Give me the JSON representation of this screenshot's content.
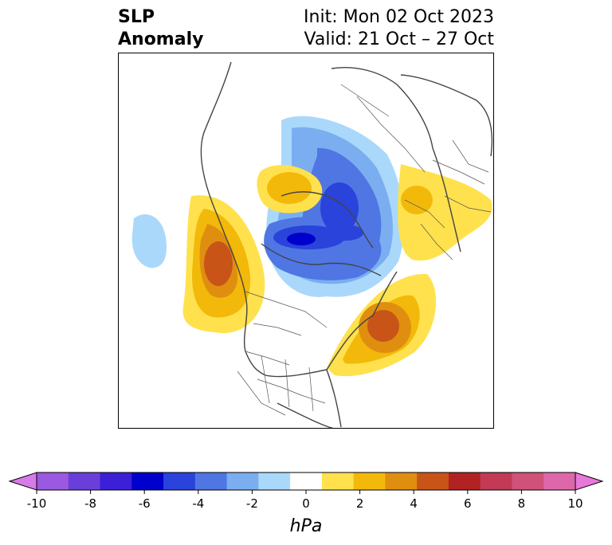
{
  "header": {
    "variable_line1": "SLP",
    "variable_line2": "Anomaly",
    "init": "Init: Mon 02 Oct 2023",
    "valid": "Valid: 21 Oct – 27 Oct"
  },
  "map": {
    "projection": "north-polar-stereographic",
    "features": [
      {
        "kind": "positive-anomaly",
        "region": "Gulf of Alaska / western Canada",
        "peak_hPa": 6
      },
      {
        "kind": "positive-anomaly",
        "region": "eastern Canada / Newfoundland",
        "peak_hPa": 6
      },
      {
        "kind": "positive-anomaly",
        "region": "Scandinavia / western Russia",
        "peak_hPa": 2
      },
      {
        "kind": "positive-anomaly",
        "region": "eastern Siberia",
        "peak_hPa": 3
      },
      {
        "kind": "negative-anomaly",
        "region": "Arctic Ocean / Kara Sea",
        "peak_hPa": -5
      },
      {
        "kind": "negative-anomaly",
        "region": "central North Pacific",
        "peak_hPa": -1
      }
    ]
  },
  "colorbar": {
    "unit": "hPa",
    "ticks": [
      "-10",
      "-8",
      "-6",
      "-4",
      "-2",
      "0",
      "2",
      "4",
      "6",
      "8",
      "10"
    ],
    "colors": [
      "#d77be8",
      "#9b59e1",
      "#6a3fd9",
      "#3b20d8",
      "#0000cc",
      "#2a43db",
      "#4f76e3",
      "#7aaef0",
      "#aad8fa",
      "#ffffff",
      "#ffe14d",
      "#f2b90a",
      "#e08e10",
      "#c85418",
      "#b22222",
      "#c23a55",
      "#d0527a",
      "#dd67aa",
      "#e878d9"
    ],
    "extend": "both"
  }
}
